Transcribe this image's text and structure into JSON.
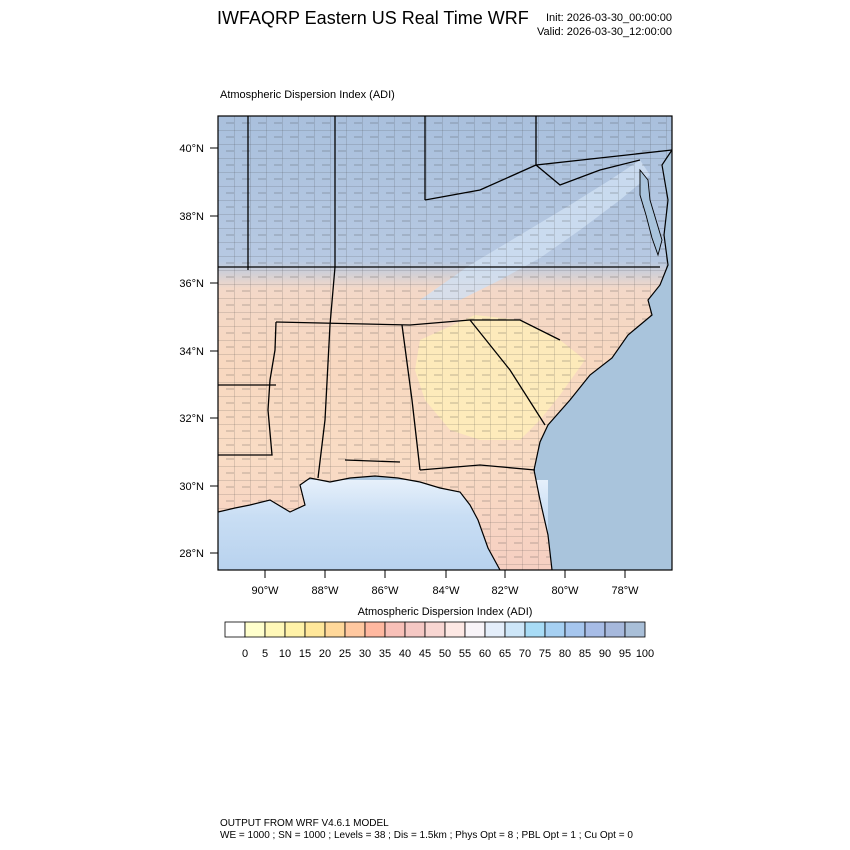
{
  "header": {
    "title": "IWFAQRP Eastern US Real Time WRF",
    "init": "Init: 2026-03-30_00:00:00",
    "valid": "Valid: 2026-03-30_12:00:00"
  },
  "map": {
    "subtitle": "Atmospheric Dispersion Index   (ADI)",
    "lat_labels": [
      "40°N",
      "38°N",
      "36°N",
      "34°N",
      "32°N",
      "30°N",
      "28°N"
    ],
    "lon_labels": [
      "90°W",
      "88°W",
      "86°W",
      "84°W",
      "82°W",
      "80°W",
      "78°W"
    ],
    "colors": {
      "ocean": "#a9c4dc",
      "gulf_light": "#cfe2f5",
      "state_lines": "#000000",
      "county_lines": "#333333"
    }
  },
  "colorbar": {
    "title": "Atmospheric Dispersion Index  (ADI)",
    "labels": [
      "0",
      "5",
      "10",
      "15",
      "20",
      "25",
      "30",
      "35",
      "40",
      "45",
      "50",
      "55",
      "60",
      "65",
      "70",
      "75",
      "80",
      "85",
      "90",
      "95",
      "100"
    ],
    "colors": [
      "#ffffff",
      "#ffffcc",
      "#fff8b8",
      "#fff2a8",
      "#ffe79a",
      "#ffd89a",
      "#ffc8a0",
      "#ffb8a0",
      "#f8c0b8",
      "#f5c8c4",
      "#f8d6d2",
      "#fde8e4",
      "#f8f4f8",
      "#e4eefa",
      "#cde6f8",
      "#a8dcf6",
      "#a6d0f2",
      "#a6c6ee",
      "#a7bce6",
      "#a6b8dc",
      "#a9bfd8"
    ]
  },
  "footer": {
    "line1": "OUTPUT FROM WRF V4.6.1 MODEL",
    "line2": "WE = 1000 ; SN = 1000 ; Levels = 38 ; Dis = 1.5km ; Phys Opt = 8 ; PBL Opt = 1 ; Cu Opt = 0"
  }
}
